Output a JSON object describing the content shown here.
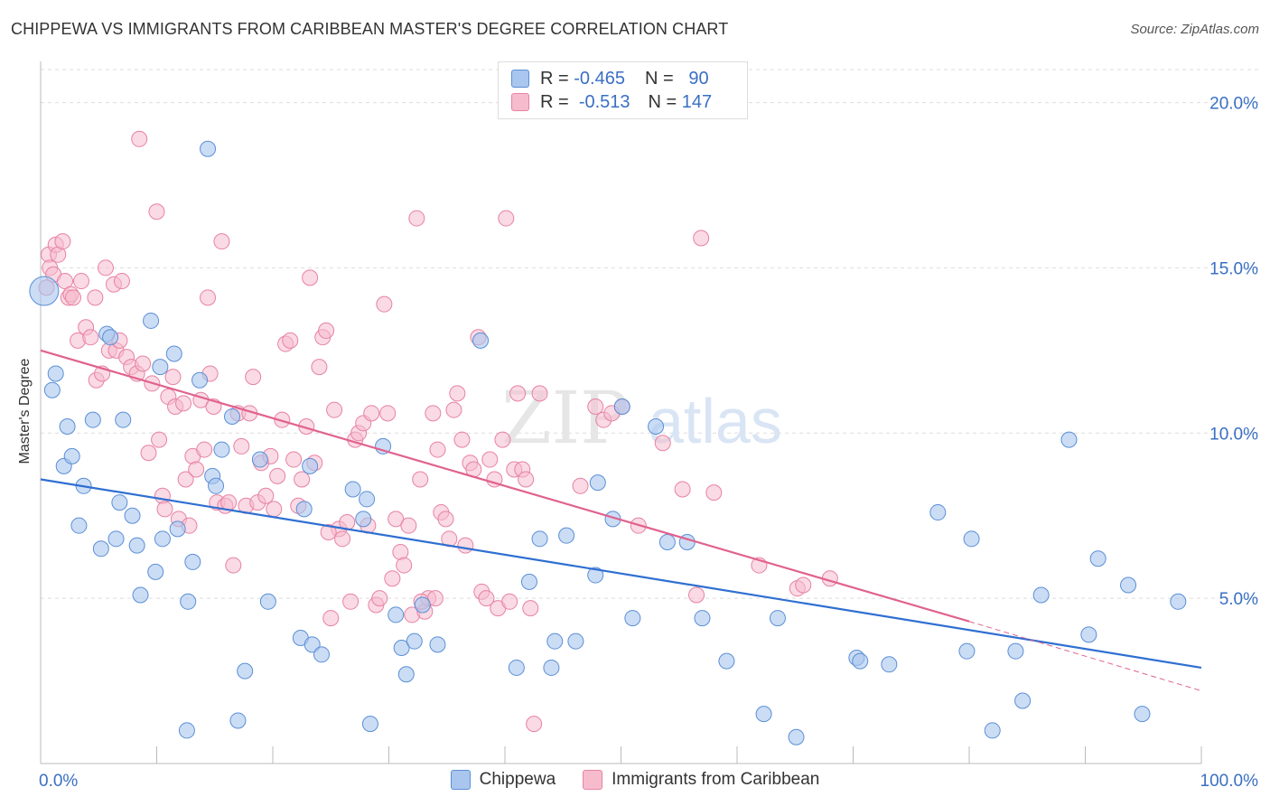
{
  "header": {
    "title": "CHIPPEWA VS IMMIGRANTS FROM CARIBBEAN MASTER'S DEGREE CORRELATION CHART",
    "source": "Source: ZipAtlas.com"
  },
  "watermark": {
    "zip": "ZIP",
    "atlas": "atlas"
  },
  "legend": {
    "rows": [
      {
        "r_label": "R =",
        "r_value": "-0.465",
        "n_label": "N =",
        "n_value": "90"
      },
      {
        "r_label": "R =",
        "r_value": "-0.513",
        "n_label": "N =",
        "n_value": "147"
      }
    ]
  },
  "bottom_legend": {
    "series1": "Chippewa",
    "series2": "Immigrants from Caribbean"
  },
  "colors": {
    "chippewa_fill": "#a9c6ee",
    "chippewa_stroke": "#5b8fd6",
    "chippewa_line": "#2f6fd1",
    "caribbean_fill": "#f6bccd",
    "caribbean_stroke": "#e782a3",
    "caribbean_line": "#e0628f",
    "axis_label": "#3a6fc4",
    "grid": "#dddddd"
  },
  "chart_data": {
    "type": "scatter",
    "title": "CHIPPEWA VS IMMIGRANTS FROM CARIBBEAN MASTER'S DEGREE CORRELATION CHART",
    "xlabel": "",
    "ylabel": "Master's Degree",
    "xlim": [
      0,
      100
    ],
    "ylim": [
      0,
      21
    ],
    "x_tick_labels": [
      "0.0%",
      "100.0%"
    ],
    "y_ticks": [
      5,
      10,
      15,
      20
    ],
    "y_tick_labels": [
      "5.0%",
      "10.0%",
      "15.0%",
      "20.0%"
    ],
    "grid": true,
    "legend_position": "top-center",
    "series": [
      {
        "name": "Chippewa",
        "r": -0.465,
        "n": 90,
        "trend": {
          "x": [
            0,
            100
          ],
          "y": [
            8.6,
            2.9
          ]
        },
        "points": [
          [
            0.3,
            14.3
          ],
          [
            1.0,
            11.3
          ],
          [
            1.3,
            11.8
          ],
          [
            2.0,
            9.0
          ],
          [
            2.3,
            10.2
          ],
          [
            2.7,
            9.3
          ],
          [
            3.3,
            7.2
          ],
          [
            3.7,
            8.4
          ],
          [
            4.5,
            10.4
          ],
          [
            5.2,
            6.5
          ],
          [
            5.7,
            13.0
          ],
          [
            6.5,
            6.8
          ],
          [
            6.8,
            7.9
          ],
          [
            7.1,
            10.4
          ],
          [
            7.9,
            7.5
          ],
          [
            8.3,
            6.6
          ],
          [
            8.6,
            5.1
          ],
          [
            9.5,
            13.4
          ],
          [
            9.9,
            5.8
          ],
          [
            10.3,
            12.0
          ],
          [
            10.5,
            6.8
          ],
          [
            11.5,
            12.4
          ],
          [
            11.8,
            7.1
          ],
          [
            12.6,
            1.0
          ],
          [
            12.7,
            4.9
          ],
          [
            13.1,
            6.1
          ],
          [
            13.7,
            11.6
          ],
          [
            14.4,
            18.6
          ],
          [
            14.8,
            8.7
          ],
          [
            15.1,
            8.4
          ],
          [
            15.6,
            9.5
          ],
          [
            16.5,
            10.5
          ],
          [
            17.0,
            1.3
          ],
          [
            17.6,
            2.8
          ],
          [
            18.9,
            9.2
          ],
          [
            19.6,
            4.9
          ],
          [
            22.4,
            3.8
          ],
          [
            22.7,
            7.7
          ],
          [
            23.2,
            9.0
          ],
          [
            23.4,
            3.6
          ],
          [
            24.2,
            3.3
          ],
          [
            26.9,
            8.3
          ],
          [
            27.8,
            7.4
          ],
          [
            28.1,
            8.0
          ],
          [
            28.4,
            1.2
          ],
          [
            29.5,
            9.6
          ],
          [
            30.6,
            4.5
          ],
          [
            31.1,
            3.5
          ],
          [
            31.5,
            2.7
          ],
          [
            32.2,
            3.7
          ],
          [
            32.9,
            4.8
          ],
          [
            34.2,
            3.6
          ],
          [
            37.9,
            12.8
          ],
          [
            41.0,
            2.9
          ],
          [
            42.1,
            5.5
          ],
          [
            43.0,
            6.8
          ],
          [
            44.0,
            2.9
          ],
          [
            44.3,
            3.7
          ],
          [
            45.3,
            6.9
          ],
          [
            46.1,
            3.7
          ],
          [
            47.8,
            5.7
          ],
          [
            48.0,
            8.5
          ],
          [
            49.3,
            7.4
          ],
          [
            50.1,
            10.8
          ],
          [
            51.0,
            4.4
          ],
          [
            53.0,
            10.2
          ],
          [
            54.0,
            6.7
          ],
          [
            55.7,
            6.7
          ],
          [
            57.0,
            4.4
          ],
          [
            59.1,
            3.1
          ],
          [
            62.3,
            1.5
          ],
          [
            63.5,
            4.4
          ],
          [
            65.1,
            0.8
          ],
          [
            70.3,
            3.2
          ],
          [
            70.6,
            3.1
          ],
          [
            73.1,
            3.0
          ],
          [
            77.3,
            7.6
          ],
          [
            79.8,
            3.4
          ],
          [
            80.2,
            6.8
          ],
          [
            82.0,
            1.0
          ],
          [
            84.0,
            3.4
          ],
          [
            84.6,
            1.9
          ],
          [
            86.2,
            5.1
          ],
          [
            88.6,
            9.8
          ],
          [
            90.3,
            3.9
          ],
          [
            91.1,
            6.2
          ],
          [
            93.7,
            5.4
          ],
          [
            94.9,
            1.5
          ],
          [
            98.0,
            4.9
          ],
          [
            6.0,
            12.9
          ]
        ]
      },
      {
        "name": "Immigrants from Caribbean",
        "r": -0.513,
        "n": 147,
        "trend": {
          "x": [
            0,
            80
          ],
          "y": [
            12.5,
            4.3
          ]
        },
        "trend_dashed": {
          "x": [
            80,
            100
          ],
          "y": [
            4.3,
            2.2
          ]
        },
        "points": [
          [
            0.5,
            14.4
          ],
          [
            0.7,
            15.4
          ],
          [
            0.8,
            15.0
          ],
          [
            1.1,
            14.8
          ],
          [
            1.3,
            15.7
          ],
          [
            1.5,
            15.4
          ],
          [
            1.9,
            15.8
          ],
          [
            2.1,
            14.6
          ],
          [
            2.4,
            14.1
          ],
          [
            2.6,
            14.2
          ],
          [
            2.8,
            14.1
          ],
          [
            3.2,
            12.8
          ],
          [
            3.5,
            14.6
          ],
          [
            3.9,
            13.2
          ],
          [
            4.3,
            12.9
          ],
          [
            4.7,
            14.1
          ],
          [
            4.8,
            11.6
          ],
          [
            5.3,
            11.8
          ],
          [
            5.6,
            15.0
          ],
          [
            5.9,
            12.5
          ],
          [
            6.3,
            14.5
          ],
          [
            6.5,
            12.5
          ],
          [
            6.8,
            12.8
          ],
          [
            7.0,
            14.6
          ],
          [
            7.4,
            12.3
          ],
          [
            7.8,
            12.0
          ],
          [
            8.3,
            11.8
          ],
          [
            8.5,
            18.9
          ],
          [
            8.8,
            12.1
          ],
          [
            9.3,
            9.4
          ],
          [
            9.6,
            11.5
          ],
          [
            10.0,
            16.7
          ],
          [
            10.2,
            9.8
          ],
          [
            10.5,
            8.1
          ],
          [
            10.7,
            7.7
          ],
          [
            11.0,
            11.1
          ],
          [
            11.4,
            11.7
          ],
          [
            11.6,
            10.8
          ],
          [
            11.9,
            7.4
          ],
          [
            12.3,
            10.9
          ],
          [
            12.5,
            8.6
          ],
          [
            12.8,
            7.2
          ],
          [
            13.1,
            9.3
          ],
          [
            13.4,
            8.9
          ],
          [
            13.8,
            11.0
          ],
          [
            14.1,
            9.5
          ],
          [
            14.4,
            14.1
          ],
          [
            14.6,
            11.8
          ],
          [
            14.9,
            10.8
          ],
          [
            15.2,
            7.9
          ],
          [
            15.6,
            15.8
          ],
          [
            15.9,
            7.8
          ],
          [
            16.2,
            7.9
          ],
          [
            16.6,
            6.0
          ],
          [
            17.0,
            10.6
          ],
          [
            17.3,
            9.6
          ],
          [
            17.7,
            7.8
          ],
          [
            18.0,
            10.6
          ],
          [
            18.3,
            11.7
          ],
          [
            18.7,
            7.9
          ],
          [
            19.0,
            9.1
          ],
          [
            19.4,
            8.1
          ],
          [
            19.8,
            9.3
          ],
          [
            20.1,
            7.7
          ],
          [
            20.4,
            8.7
          ],
          [
            20.8,
            10.4
          ],
          [
            21.1,
            12.7
          ],
          [
            21.5,
            12.8
          ],
          [
            21.8,
            9.2
          ],
          [
            22.2,
            7.8
          ],
          [
            22.5,
            8.6
          ],
          [
            22.9,
            10.2
          ],
          [
            23.2,
            14.7
          ],
          [
            23.6,
            9.1
          ],
          [
            24.0,
            12.0
          ],
          [
            24.3,
            12.9
          ],
          [
            24.6,
            13.1
          ],
          [
            25.0,
            4.4
          ],
          [
            25.3,
            10.7
          ],
          [
            25.7,
            7.1
          ],
          [
            26.0,
            6.8
          ],
          [
            26.4,
            7.3
          ],
          [
            26.7,
            4.9
          ],
          [
            27.1,
            9.8
          ],
          [
            27.4,
            10.0
          ],
          [
            27.8,
            10.3
          ],
          [
            28.2,
            7.2
          ],
          [
            28.5,
            10.6
          ],
          [
            28.9,
            4.8
          ],
          [
            29.2,
            5.0
          ],
          [
            29.6,
            13.9
          ],
          [
            29.9,
            10.6
          ],
          [
            30.3,
            5.6
          ],
          [
            30.6,
            7.4
          ],
          [
            31.0,
            6.4
          ],
          [
            31.3,
            6.0
          ],
          [
            31.7,
            7.2
          ],
          [
            32.0,
            4.5
          ],
          [
            32.4,
            16.5
          ],
          [
            32.7,
            8.6
          ],
          [
            33.1,
            4.6
          ],
          [
            33.4,
            5.0
          ],
          [
            33.8,
            10.6
          ],
          [
            34.2,
            9.5
          ],
          [
            34.5,
            7.6
          ],
          [
            34.9,
            7.4
          ],
          [
            35.2,
            6.8
          ],
          [
            35.6,
            10.7
          ],
          [
            35.9,
            11.2
          ],
          [
            36.3,
            9.8
          ],
          [
            36.6,
            6.6
          ],
          [
            37.0,
            9.1
          ],
          [
            37.3,
            8.9
          ],
          [
            37.7,
            12.9
          ],
          [
            38.0,
            5.2
          ],
          [
            38.4,
            5.0
          ],
          [
            38.7,
            9.2
          ],
          [
            39.1,
            8.6
          ],
          [
            39.4,
            4.7
          ],
          [
            39.8,
            9.8
          ],
          [
            40.1,
            16.5
          ],
          [
            40.4,
            4.9
          ],
          [
            40.8,
            8.9
          ],
          [
            41.1,
            11.2
          ],
          [
            41.5,
            8.9
          ],
          [
            41.8,
            8.6
          ],
          [
            42.2,
            4.7
          ],
          [
            42.5,
            1.2
          ],
          [
            43.0,
            11.2
          ],
          [
            46.5,
            8.4
          ],
          [
            47.8,
            10.8
          ],
          [
            48.5,
            10.4
          ],
          [
            49.2,
            10.6
          ],
          [
            50.1,
            10.8
          ],
          [
            51.5,
            7.2
          ],
          [
            53.6,
            9.7
          ],
          [
            55.3,
            8.3
          ],
          [
            56.5,
            5.1
          ],
          [
            56.9,
            15.9
          ],
          [
            58.0,
            8.2
          ],
          [
            61.9,
            6.0
          ],
          [
            65.2,
            5.3
          ],
          [
            65.7,
            5.4
          ],
          [
            68.0,
            5.6
          ],
          [
            32.8,
            4.9
          ],
          [
            34.0,
            5.0
          ],
          [
            24.8,
            7.0
          ]
        ]
      }
    ]
  }
}
